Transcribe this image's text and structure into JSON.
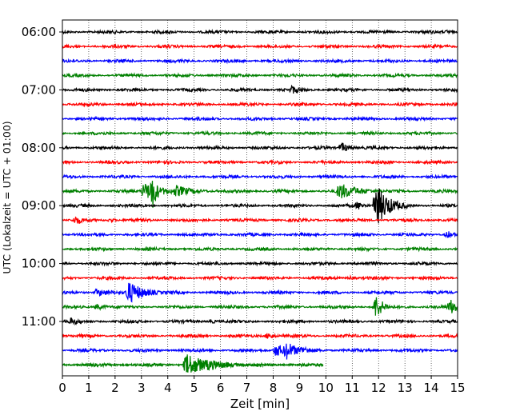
{
  "chart_data": {
    "type": "line",
    "title": "",
    "xlabel": "Zeit  [min]",
    "ylabel": "UTC (Lokalzeit = UTC + 01:00)",
    "xlim": [
      0,
      15
    ],
    "x_ticks": [
      0,
      1,
      2,
      3,
      4,
      5,
      6,
      7,
      8,
      9,
      10,
      11,
      12,
      13,
      14,
      15
    ],
    "y_tick_labels": [
      "06:00",
      "07:00",
      "08:00",
      "09:00",
      "10:00",
      "11:00"
    ],
    "grid": "vertical dotted",
    "trace_interval_minutes": 15,
    "colors": [
      "#000000",
      "#ff0000",
      "#0000ff",
      "#008000"
    ],
    "series": [
      {
        "start": "06:00",
        "color": "#000000",
        "end_min": 15,
        "events": [
          {
            "t": 14.6,
            "amp": 3,
            "dur": 0.3
          }
        ]
      },
      {
        "start": "06:15",
        "color": "#ff0000",
        "end_min": 15,
        "events": []
      },
      {
        "start": "06:30",
        "color": "#0000ff",
        "end_min": 15,
        "events": []
      },
      {
        "start": "06:45",
        "color": "#008000",
        "end_min": 15,
        "events": [
          {
            "t": 12.8,
            "amp": 2,
            "dur": 0.3
          }
        ]
      },
      {
        "start": "07:00",
        "color": "#000000",
        "end_min": 15,
        "events": [
          {
            "t": 8.7,
            "amp": 6,
            "dur": 0.4
          }
        ]
      },
      {
        "start": "07:15",
        "color": "#ff0000",
        "end_min": 15,
        "events": []
      },
      {
        "start": "07:30",
        "color": "#0000ff",
        "end_min": 15,
        "events": []
      },
      {
        "start": "07:45",
        "color": "#008000",
        "end_min": 15,
        "events": []
      },
      {
        "start": "08:00",
        "color": "#000000",
        "end_min": 15,
        "events": [
          {
            "t": 10.6,
            "amp": 7,
            "dur": 0.35
          }
        ]
      },
      {
        "start": "08:15",
        "color": "#ff0000",
        "end_min": 15,
        "events": []
      },
      {
        "start": "08:30",
        "color": "#0000ff",
        "end_min": 15,
        "events": []
      },
      {
        "start": "08:45",
        "color": "#008000",
        "end_min": 15,
        "events": [
          {
            "t": 3.1,
            "amp": 11,
            "dur": 0.8
          },
          {
            "t": 3.4,
            "amp": 26,
            "dur": 0.2
          },
          {
            "t": 4.3,
            "amp": 8,
            "dur": 0.7
          },
          {
            "t": 10.5,
            "amp": 11,
            "dur": 0.8
          }
        ]
      },
      {
        "start": "09:00",
        "color": "#000000",
        "end_min": 15,
        "events": [
          {
            "t": 11.2,
            "amp": 6,
            "dur": 0.3
          },
          {
            "t": 11.9,
            "amp": 28,
            "dur": 0.5
          }
        ]
      },
      {
        "start": "09:15",
        "color": "#ff0000",
        "end_min": 15,
        "events": [
          {
            "t": 0.5,
            "amp": 6,
            "dur": 0.4
          },
          {
            "t": 1.8,
            "amp": 3,
            "dur": 0.3
          }
        ]
      },
      {
        "start": "09:30",
        "color": "#0000ff",
        "end_min": 15,
        "events": [
          {
            "t": 14.6,
            "amp": 5,
            "dur": 0.4
          }
        ]
      },
      {
        "start": "09:45",
        "color": "#008000",
        "end_min": 15,
        "events": []
      },
      {
        "start": "10:00",
        "color": "#000000",
        "end_min": 15,
        "events": []
      },
      {
        "start": "10:15",
        "color": "#ff0000",
        "end_min": 15,
        "events": [
          {
            "t": 10.9,
            "amp": 3,
            "dur": 0.3
          }
        ]
      },
      {
        "start": "10:30",
        "color": "#0000ff",
        "end_min": 15,
        "events": [
          {
            "t": 1.3,
            "amp": 5,
            "dur": 0.8
          },
          {
            "t": 2.5,
            "amp": 15,
            "dur": 0.6
          }
        ]
      },
      {
        "start": "10:45",
        "color": "#008000",
        "end_min": 15,
        "events": [
          {
            "t": 1.3,
            "amp": 4,
            "dur": 0.5
          },
          {
            "t": 11.9,
            "amp": 16,
            "dur": 0.3
          },
          {
            "t": 14.7,
            "amp": 10,
            "dur": 0.6
          }
        ]
      },
      {
        "start": "11:00",
        "color": "#000000",
        "end_min": 15,
        "events": [
          {
            "t": 0.3,
            "amp": 5,
            "dur": 0.5
          },
          {
            "t": 5.6,
            "amp": 3,
            "dur": 0.4
          }
        ]
      },
      {
        "start": "11:15",
        "color": "#ff0000",
        "end_min": 15,
        "events": [
          {
            "t": 7.8,
            "amp": 5,
            "dur": 0.3
          }
        ]
      },
      {
        "start": "11:30",
        "color": "#0000ff",
        "end_min": 15,
        "events": [
          {
            "t": 8.1,
            "amp": 8,
            "dur": 0.8
          },
          {
            "t": 8.5,
            "amp": 13,
            "dur": 0.4
          },
          {
            "t": 9.0,
            "amp": 6,
            "dur": 0.6
          }
        ]
      },
      {
        "start": "11:45",
        "color": "#008000",
        "end_min": 9.9,
        "events": [
          {
            "t": 4.7,
            "amp": 14,
            "dur": 0.9
          },
          {
            "t": 5.5,
            "amp": 7,
            "dur": 1.0
          }
        ]
      }
    ]
  }
}
